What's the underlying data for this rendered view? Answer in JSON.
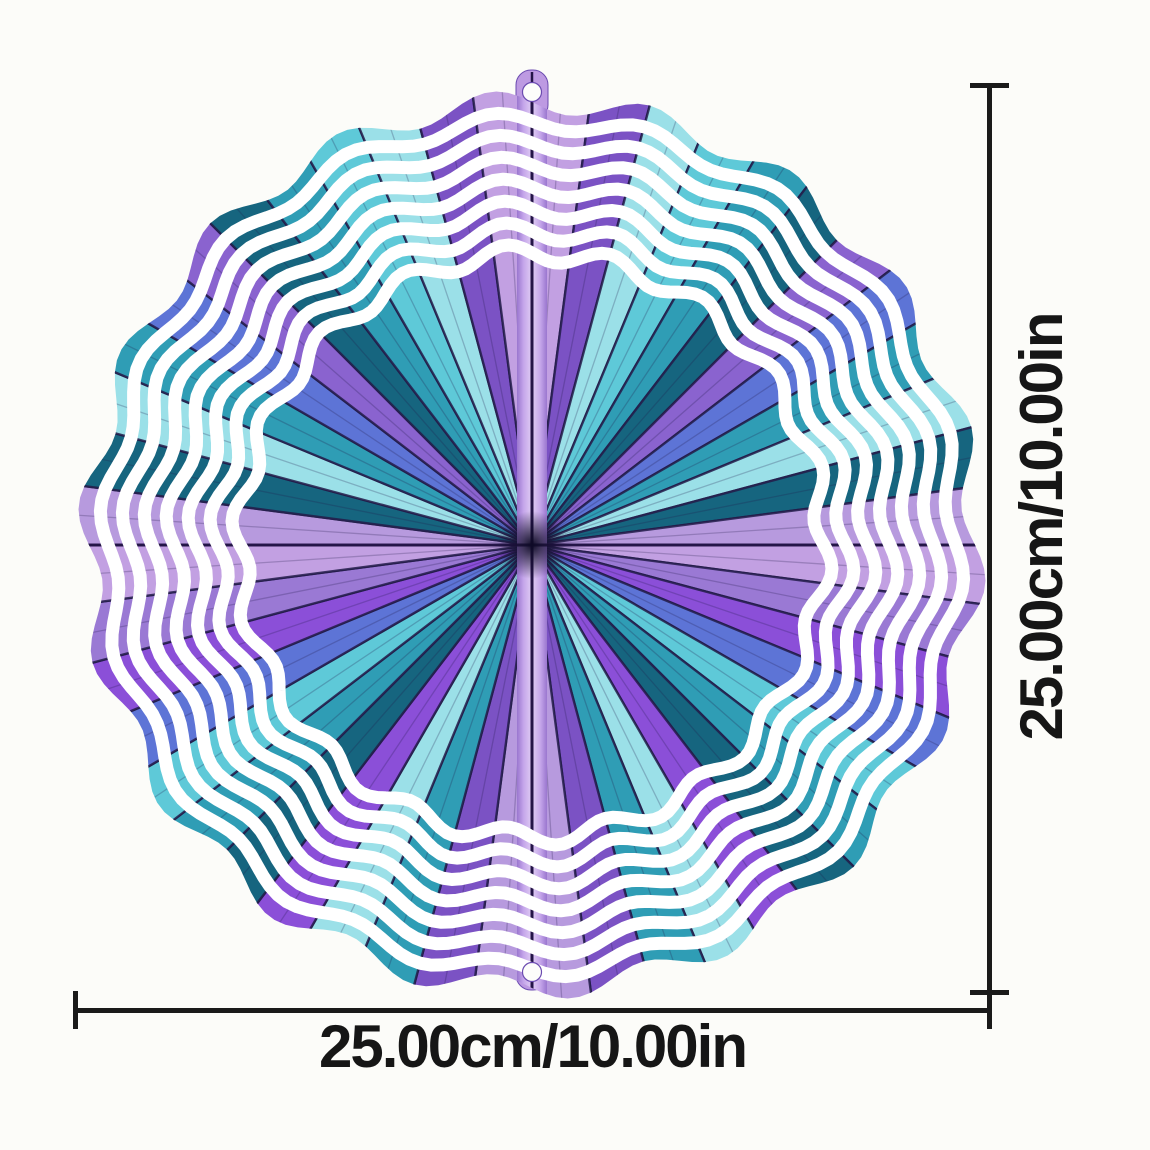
{
  "page": {
    "background": "#fcfcf9"
  },
  "dimensions": {
    "width_label": "25.00cm/10.00in",
    "height_label": "25.00cm/10.00in",
    "line_color": "#1a1a1a",
    "text_color": "#161616"
  },
  "artwork": {
    "description": "teal and purple kaleidoscope 3D metal wind spinner with wavy concentric cut rings, center hanging strip and hanging holes at top and bottom",
    "white": "#ffffff",
    "outline": "#231c4a",
    "center_dark": "#0e0a26",
    "strip": {
      "light": "#e0cdf4",
      "mid": "#c5a6ea",
      "edge": "#9a76cf",
      "line": "#241447"
    },
    "tab_fill": "#bd9ae2",
    "tab_stroke": "#6b4bb0",
    "hole_fill": "#fdfdfb",
    "half_sector_colors": [
      "#c2a0e2",
      "#7b52c4",
      "#9be0e8",
      "#5ec9d8",
      "#2f9db5",
      "#16657f",
      "#8a63cf",
      "#5d74d6",
      "#2f9db5",
      "#9be0e8",
      "#16657f",
      "#b79ade",
      "#c2a0e2",
      "#9a79d4",
      "#8b4fd8",
      "#5d74d6",
      "#5ec9d8",
      "#2f9db5",
      "#16657f",
      "#8b4fd8",
      "#9be0e8",
      "#2f9db5",
      "#7b52c4",
      "#b79ade"
    ]
  }
}
